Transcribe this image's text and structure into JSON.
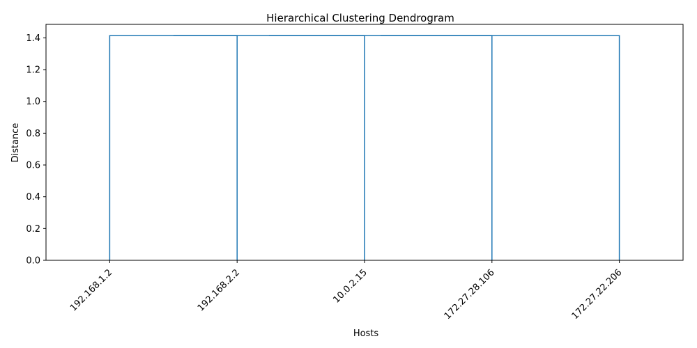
{
  "chart_data": {
    "type": "dendrogram",
    "title": "Hierarchical Clustering Dendrogram",
    "xlabel": "Hosts",
    "ylabel": "Distance",
    "ylim": [
      0,
      1.485
    ],
    "yticks": [
      0.0,
      0.2,
      0.4,
      0.6,
      0.8,
      1.0,
      1.2,
      1.4
    ],
    "ytick_labels": [
      "0.0",
      "0.2",
      "0.4",
      "0.6",
      "0.8",
      "1.0",
      "1.2",
      "1.4"
    ],
    "leaves": [
      "192.168.1.2",
      "192.168.2.2",
      "10.0.2.15",
      "172.27.28.106",
      "172.27.22.206"
    ],
    "merges": [
      {
        "left": "192.168.1.2",
        "right": "192.168.2.2",
        "distance": 1.4142
      },
      {
        "left": "cluster(192.168.1.2, 192.168.2.2)",
        "right": "10.0.2.15",
        "distance": 1.4142
      },
      {
        "left": "cluster(192.168.1.2, 192.168.2.2, 10.0.2.15)",
        "right": "172.27.28.106",
        "distance": 1.4142
      },
      {
        "left": "cluster(192.168.1.2, 192.168.2.2, 10.0.2.15, 172.27.28.106)",
        "right": "172.27.22.206",
        "distance": 1.4142
      }
    ],
    "grid": false,
    "line_color": "#1f77b4"
  }
}
